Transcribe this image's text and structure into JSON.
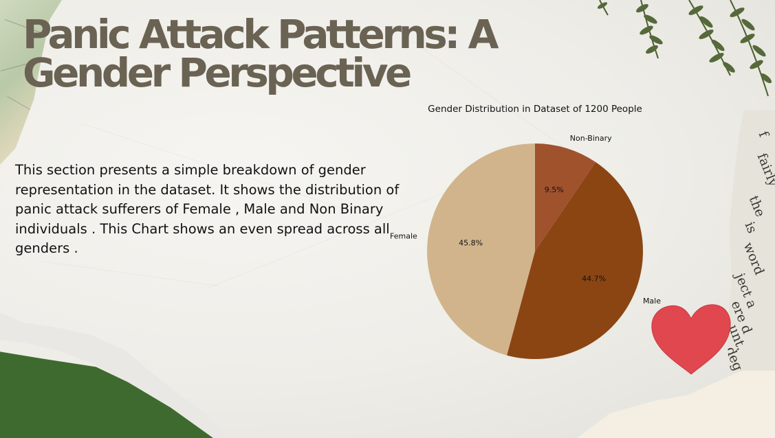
{
  "slide": {
    "title": "Panic Attack Patterns: A Gender Perspective",
    "body": "This section presents a simple breakdown of gender representation in the dataset. It shows the distribution of panic attack sufferers of Female , Male and Non Binary individuals .  This Chart shows an even spread across all genders .",
    "colors": {
      "title": "#6a6253",
      "green_accent": "#3f6a2f",
      "heart": "#e0474f"
    },
    "decorations": [
      "map-fragment",
      "fern-leaves",
      "newspaper-strip",
      "red-paper-heart",
      "torn-paper-edges"
    ]
  },
  "chart_data": {
    "type": "pie",
    "title": "Gender Distribution in Dataset of 1200 People",
    "slices": [
      {
        "label": "Non-Binary",
        "value": 9.5,
        "pct_label": "9.5%",
        "color": "#a0522d"
      },
      {
        "label": "Male",
        "value": 44.7,
        "pct_label": "44.7%",
        "color": "#8b4513"
      },
      {
        "label": "Female",
        "value": 45.8,
        "pct_label": "45.8%",
        "color": "#d2b48c"
      }
    ],
    "start_angle": "top",
    "direction": "clockwise",
    "legend": "none"
  }
}
